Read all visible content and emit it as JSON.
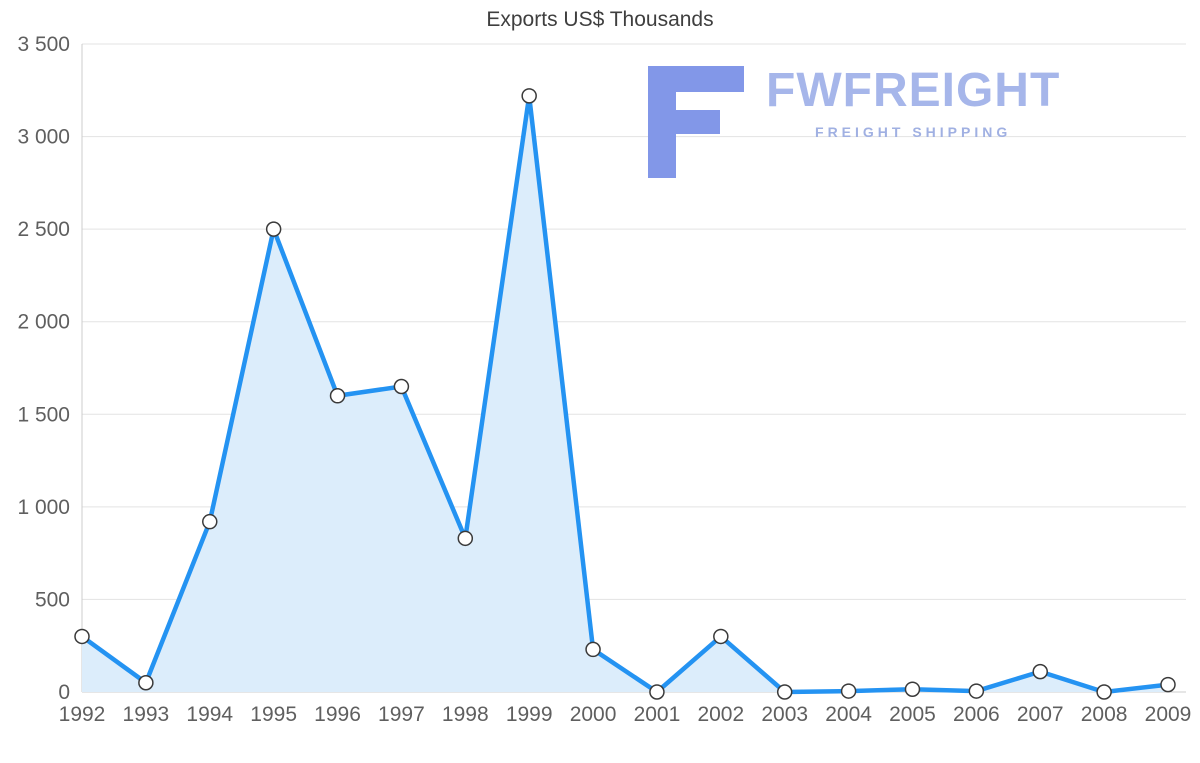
{
  "title": "Exports US$ Thousands",
  "watermark": {
    "name": "FWFREIGHT",
    "tagline": "FREIGHT SHIPPING",
    "icon": "f-block-logo-icon",
    "icon_color": "#8297e8",
    "text_color": "#a6b6ea"
  },
  "chart_data": {
    "type": "area",
    "title": "Exports US$ Thousands",
    "x": [
      1992,
      1993,
      1994,
      1995,
      1996,
      1997,
      1998,
      1999,
      2000,
      2001,
      2002,
      2003,
      2004,
      2005,
      2006,
      2007,
      2008,
      2009
    ],
    "values": [
      300,
      50,
      920,
      2500,
      1600,
      1650,
      830,
      3220,
      230,
      0,
      300,
      0,
      5,
      15,
      5,
      110,
      0,
      40
    ],
    "xlabel": "",
    "ylabel": "",
    "ylim": [
      0,
      3500
    ],
    "yticks": [
      0,
      500,
      1000,
      1500,
      2000,
      2500,
      3000,
      3500
    ],
    "ytick_labels": [
      "0",
      "500",
      "1 000",
      "1 500",
      "2 000",
      "2 500",
      "3 000",
      "3 500"
    ],
    "grid": true,
    "legend": "none",
    "line_color": "#2493f2",
    "fill_color": "#dcedfb",
    "marker_fill": "#ffffff",
    "marker_stroke": "#3a3a3a",
    "grid_color": "#e3e3e3",
    "axis_color": "#cccccc"
  }
}
